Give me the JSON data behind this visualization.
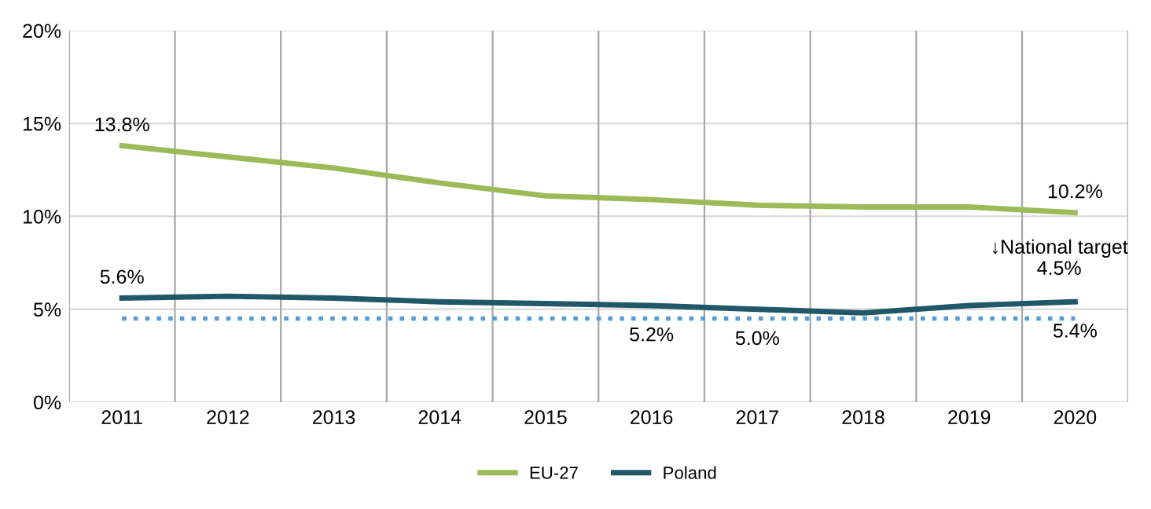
{
  "chart_data": {
    "type": "line",
    "categories": [
      "2011",
      "2012",
      "2013",
      "2014",
      "2015",
      "2016",
      "2017",
      "2018",
      "2019",
      "2020"
    ],
    "series": [
      {
        "name": "EU-27",
        "color": "#9bbb59",
        "values": [
          13.8,
          13.2,
          12.6,
          11.8,
          11.1,
          10.9,
          10.6,
          10.5,
          10.5,
          10.2
        ],
        "value_labels": [
          "13.8%",
          null,
          null,
          null,
          null,
          null,
          null,
          null,
          null,
          "10.2%"
        ]
      },
      {
        "name": "Poland",
        "color": "#215868",
        "values": [
          5.6,
          5.7,
          5.6,
          5.4,
          5.3,
          5.2,
          5.0,
          4.8,
          5.2,
          5.4
        ],
        "value_labels": [
          "5.6%",
          null,
          null,
          null,
          null,
          "5.2%",
          "5.0%",
          null,
          null,
          "5.4%"
        ]
      }
    ],
    "ylim": [
      0,
      20
    ],
    "yticks": [
      {
        "value": 0,
        "label": "0%"
      },
      {
        "value": 5,
        "label": "5%"
      },
      {
        "value": 10,
        "label": "10%"
      },
      {
        "value": 15,
        "label": "15%"
      },
      {
        "value": 20,
        "label": "20%"
      }
    ],
    "ref_lines": [
      {
        "axis": "y",
        "value": 4.5,
        "label": "↓National target\n4.5%",
        "color": "#5b9bd5",
        "line_style": "dotted"
      }
    ],
    "grid": true,
    "legend": "bottom",
    "marker": "none",
    "line_style": "solid"
  }
}
